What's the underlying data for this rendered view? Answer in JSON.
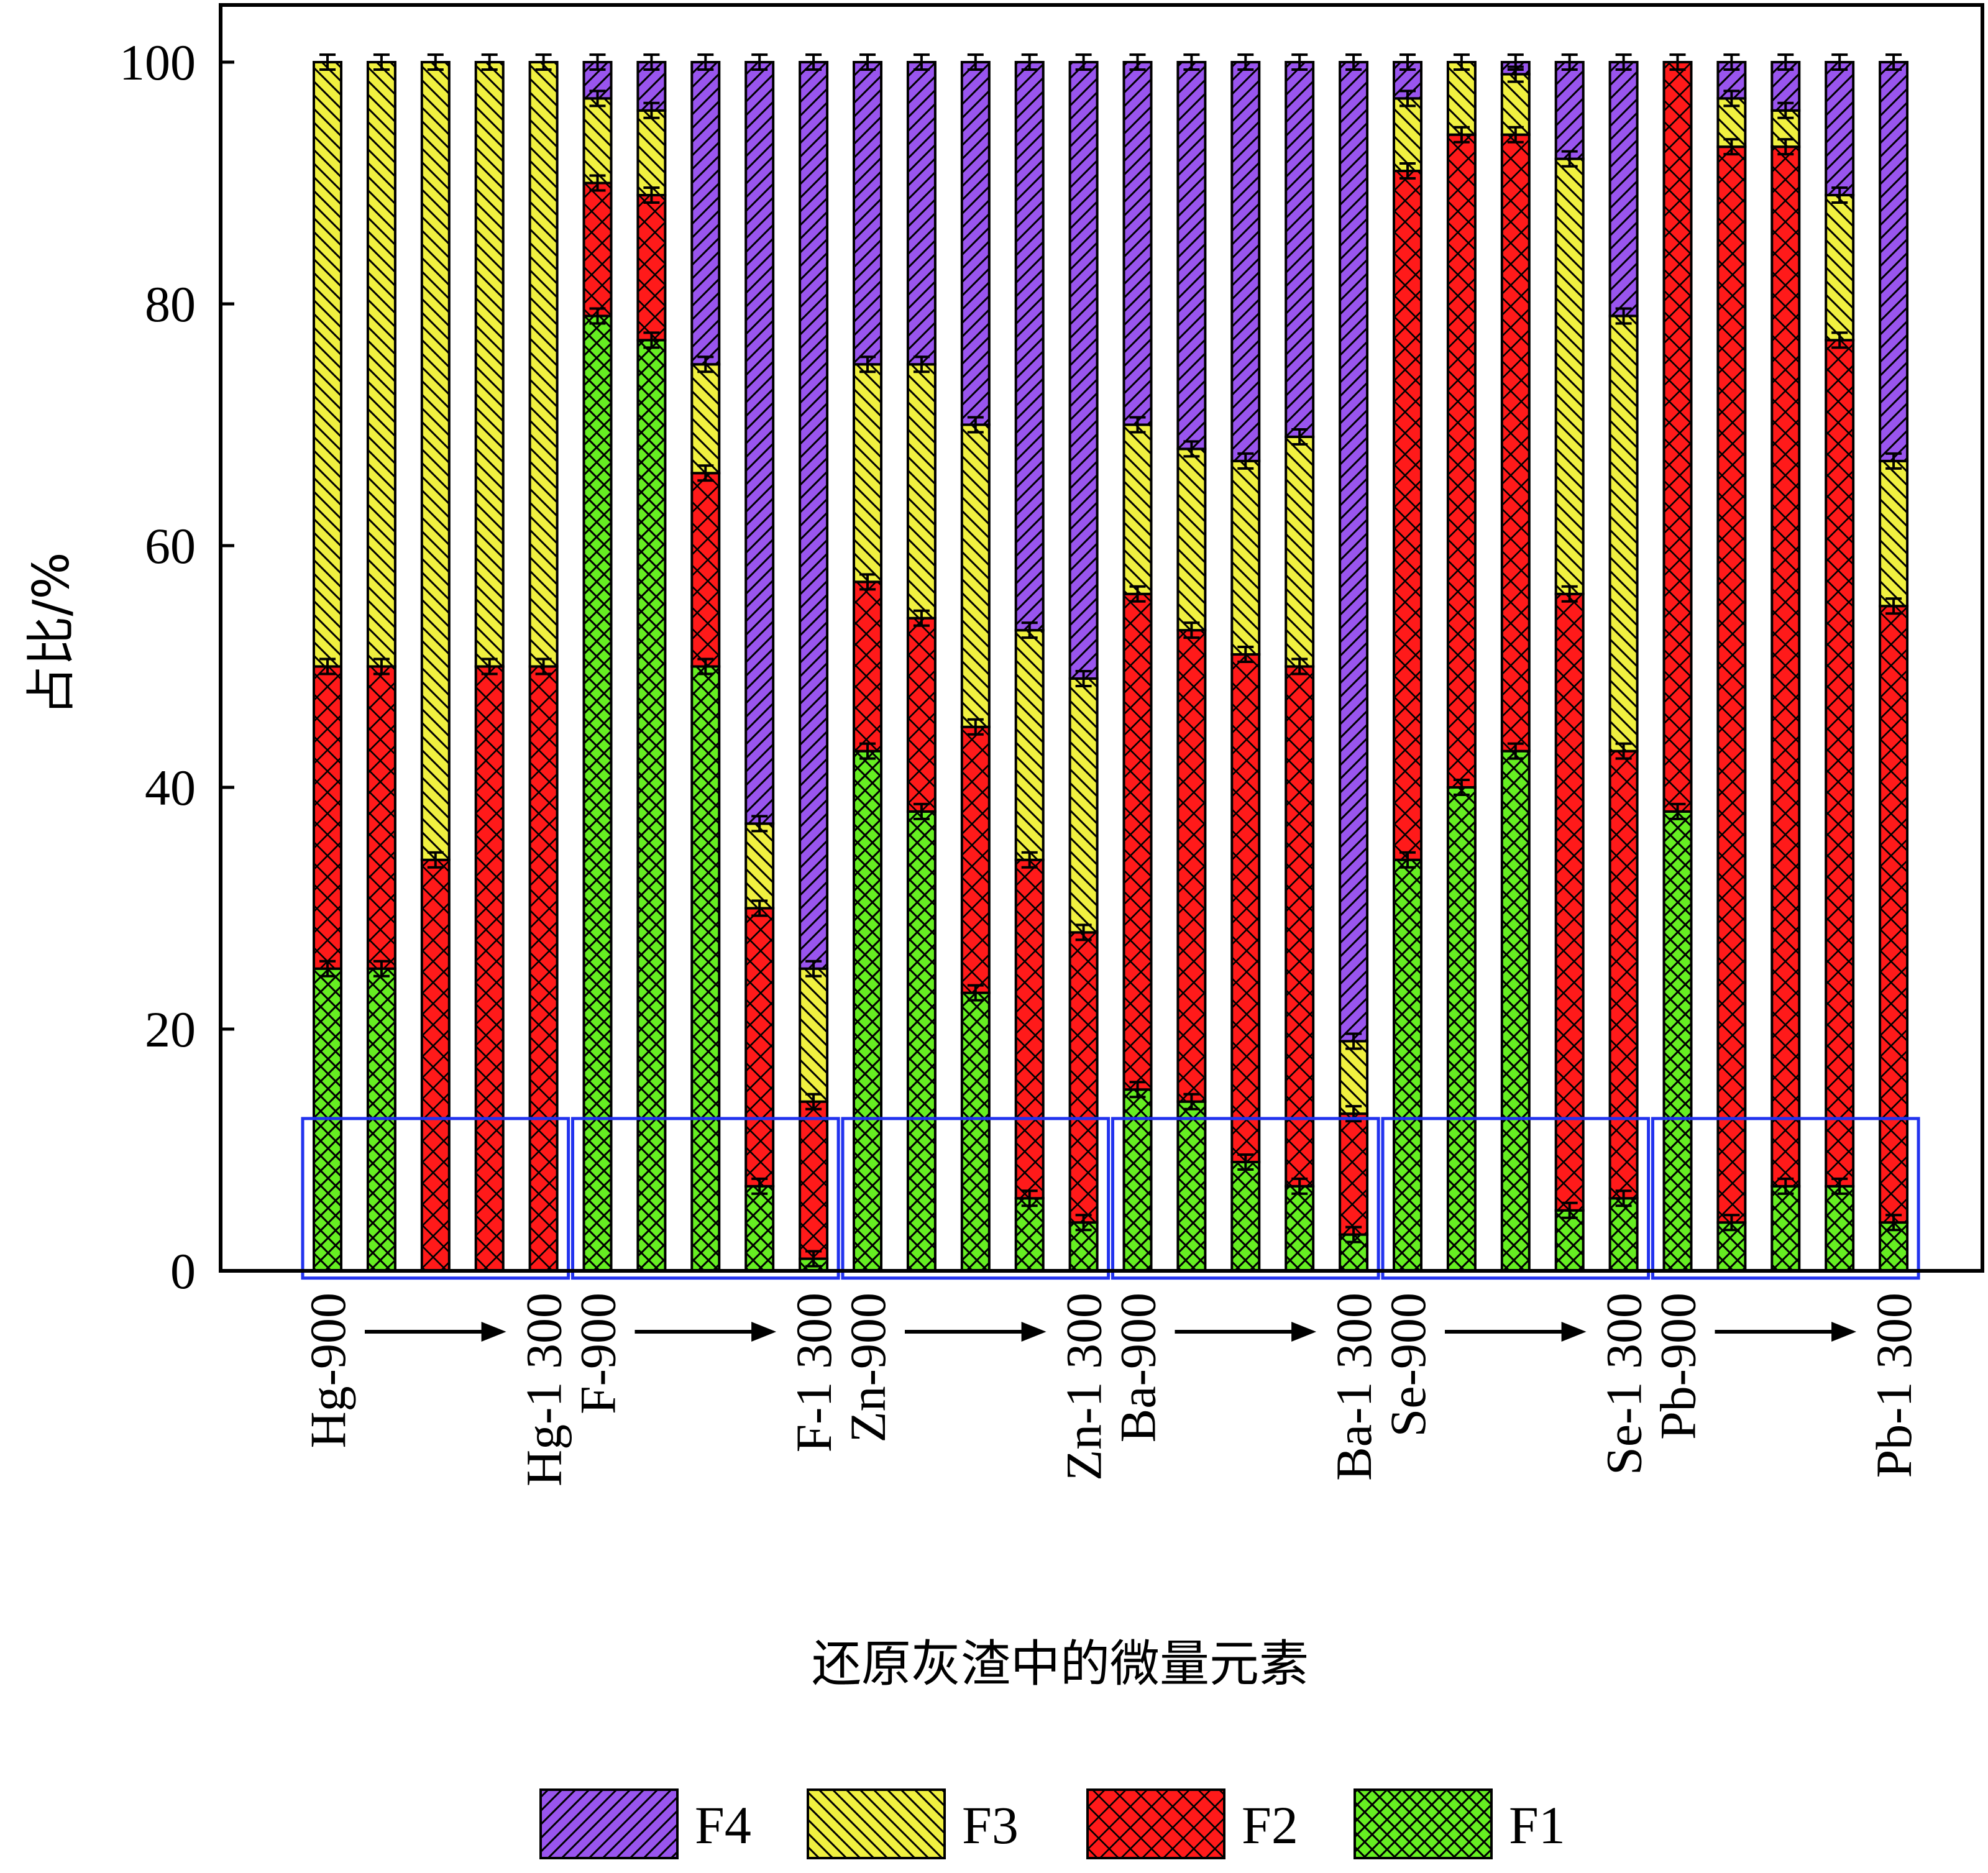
{
  "chart_data": {
    "type": "bar",
    "stacked": true,
    "ylabel": "占比/%",
    "xlabel": "还原灰渣中的微量元素",
    "ylim": [
      0,
      100
    ],
    "yticks": [
      0,
      20,
      40,
      60,
      80,
      100
    ],
    "grid": false,
    "legend_position": "bottom",
    "categories": [
      "Hg-900",
      "",
      "",
      "",
      "Hg-1 300",
      "F-900",
      "",
      "",
      "",
      "F-1 300",
      "Zn-900",
      "",
      "",
      "",
      "Zn-1 300",
      "Ba-900",
      "",
      "",
      "",
      "Ba-1 300",
      "Se-900",
      "",
      "",
      "",
      "Se-1 300",
      "Pb-900",
      "",
      "",
      "",
      "Pb-1 300"
    ],
    "series": [
      {
        "name": "F1",
        "color": "#66ee22",
        "values": [
          25,
          25,
          0,
          0,
          0,
          79,
          77,
          50,
          7,
          1,
          43,
          38,
          23,
          6,
          4,
          15,
          14,
          9,
          7,
          3,
          34,
          40,
          43,
          5,
          6,
          38,
          4,
          7,
          7,
          4
        ]
      },
      {
        "name": "F2",
        "color": "#ff1a1a",
        "values": [
          25,
          25,
          34,
          50,
          50,
          11,
          12,
          16,
          23,
          13,
          14,
          16,
          22,
          28,
          24,
          41,
          39,
          42,
          43,
          10,
          57,
          54,
          51,
          51,
          37,
          62,
          89,
          86,
          70,
          51
        ]
      },
      {
        "name": "F3",
        "color": "#f0f040",
        "values": [
          50,
          50,
          66,
          50,
          50,
          7,
          7,
          9,
          7,
          11,
          18,
          21,
          25,
          19,
          21,
          14,
          15,
          16,
          19,
          6,
          6,
          6,
          5,
          36,
          36,
          0,
          4,
          3,
          12,
          12
        ]
      },
      {
        "name": "F4",
        "color": "#9955ee",
        "values": [
          0,
          0,
          0,
          0,
          0,
          3,
          4,
          25,
          63,
          75,
          25,
          25,
          30,
          47,
          51,
          30,
          32,
          33,
          31,
          81,
          3,
          0,
          1,
          8,
          21,
          0,
          3,
          4,
          11,
          33
        ]
      }
    ],
    "group_labels": [
      {
        "start": "Hg-900",
        "end": "Hg-1 300"
      },
      {
        "start": "F-900",
        "end": "F-1 300"
      },
      {
        "start": "Zn-900",
        "end": "Zn-1 300"
      },
      {
        "start": "Ba-900",
        "end": "Ba-1 300"
      },
      {
        "start": "Se-900",
        "end": "Se-1 300"
      },
      {
        "start": "Pb-900",
        "end": "Pb-1 300"
      }
    ],
    "legend": [
      "F4",
      "F3",
      "F2",
      "F1"
    ]
  }
}
